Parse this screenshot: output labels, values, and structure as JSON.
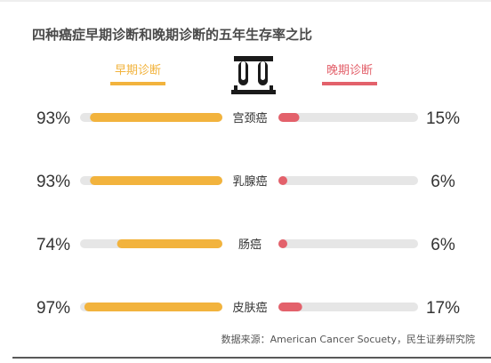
{
  "chart_data": {
    "type": "bar",
    "title": "四种癌症早期诊断和晚期诊断的五年生存率之比",
    "categories": [
      "宫颈癌",
      "乳腺癌",
      "肠癌",
      "皮肤癌"
    ],
    "series": [
      {
        "name": "早期诊断",
        "values": [
          93,
          93,
          74,
          97
        ],
        "labels": [
          "93%",
          "93%",
          "74%",
          "97%"
        ]
      },
      {
        "name": "晚期诊断",
        "values": [
          15,
          6,
          6,
          17
        ],
        "labels": [
          "15%",
          "6%",
          "6%",
          "17%"
        ]
      }
    ],
    "xlim": [
      0,
      100
    ],
    "source": "数据来源：American Cancer Socuety，民生证券研究院",
    "colors": {
      "early": "#f2b33d",
      "late": "#e3616b",
      "track": "#e6e6e6",
      "text": "#333333"
    }
  },
  "icon": "test-tubes-icon"
}
